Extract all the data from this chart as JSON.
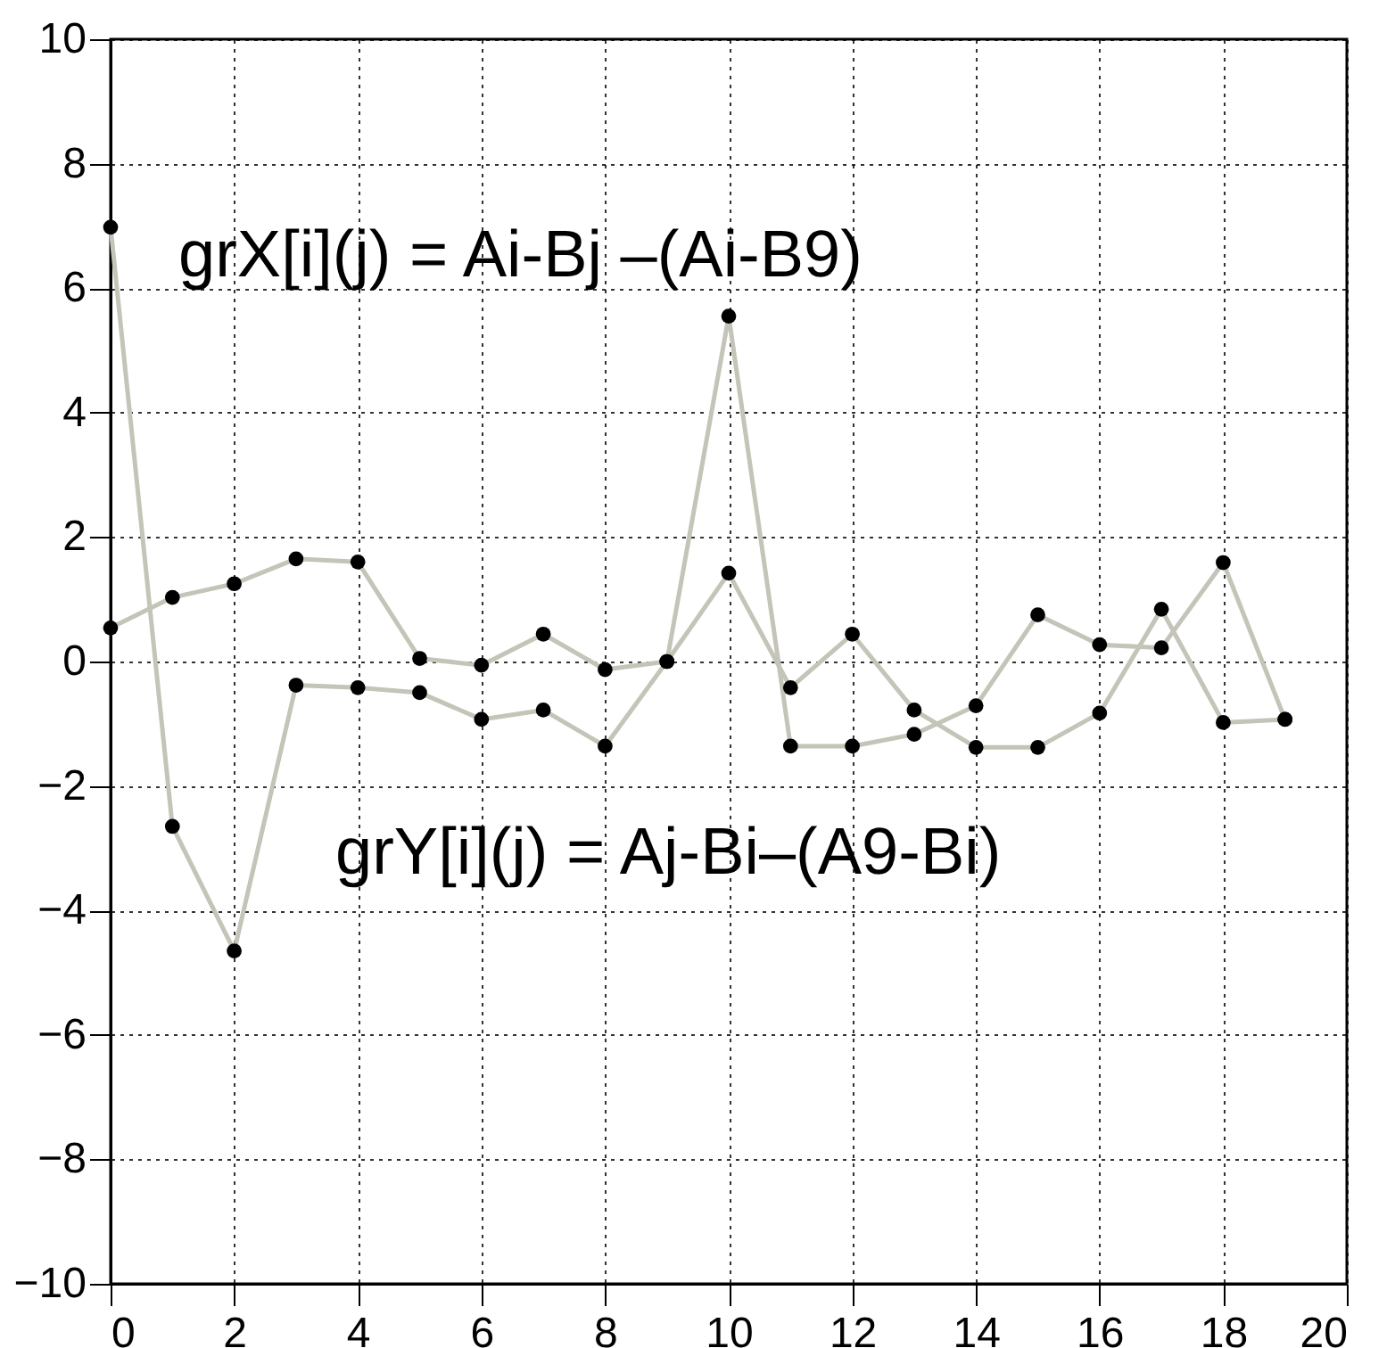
{
  "chart_data": {
    "type": "line",
    "x": [
      0,
      1,
      2,
      3,
      4,
      5,
      6,
      7,
      8,
      9,
      10,
      11,
      12,
      13,
      14,
      15,
      16,
      17,
      18,
      19
    ],
    "series": [
      {
        "color": "#c4c4b8",
        "values": [
          6.98,
          -2.65,
          -4.65,
          -0.38,
          -0.42,
          -0.5,
          -0.93,
          -0.78,
          -1.36,
          0,
          5.55,
          -1.36,
          -1.36,
          -1.17,
          -0.71,
          0.75,
          0.27,
          0.22,
          1.59,
          -0.93
        ]
      },
      {
        "color": "#c4c4b8",
        "values": [
          0.54,
          1.03,
          1.25,
          1.65,
          1.6,
          0.05,
          -0.06,
          0.44,
          -0.13,
          0,
          1.42,
          -0.42,
          0.44,
          -0.78,
          -1.38,
          -1.38,
          -0.83,
          0.84,
          -0.98,
          -0.93
        ]
      }
    ],
    "xlim": [
      0,
      20
    ],
    "xticks": [
      0,
      2,
      4,
      6,
      8,
      10,
      12,
      14,
      16,
      18,
      20
    ],
    "ylim": [
      -10,
      10
    ],
    "yticks": [
      -10,
      -8,
      -6,
      -4,
      -2,
      0,
      2,
      4,
      6,
      8,
      10
    ],
    "grid": true,
    "marker": "circle",
    "line_style": "solid",
    "annotations": [
      "grX[i](j) = Ai-Bj –(Ai-B9)",
      "grY[i](j) = Aj-Bi–(A9-Bi)"
    ]
  }
}
